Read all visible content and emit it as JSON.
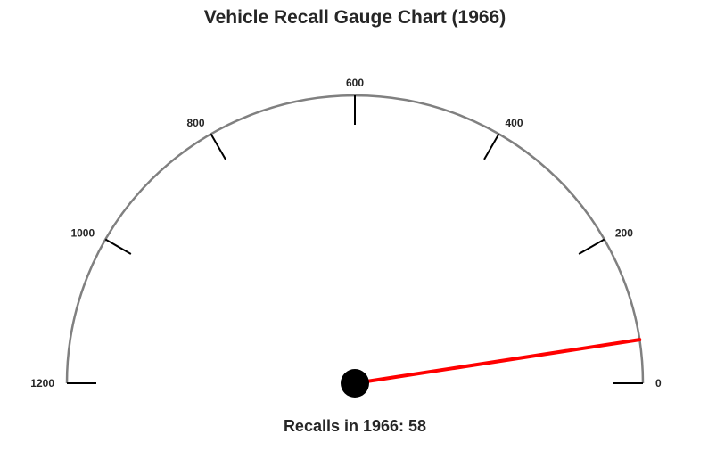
{
  "chart_data": {
    "type": "gauge",
    "title": "Vehicle Recall Gauge Chart (1966)",
    "caption": "Recalls in 1966: 58",
    "value": 58,
    "range": [
      0,
      1200
    ],
    "ticks": [
      0,
      200,
      400,
      600,
      800,
      1000,
      1200
    ],
    "tick_labels": [
      "0",
      "200",
      "400",
      "600",
      "800",
      "1000",
      "1200"
    ],
    "direction": "clockwise from right (0) to left (1200)",
    "colors": {
      "arc": "#808080",
      "tick": "#000000",
      "needle": "#ff0000",
      "hub": "#000000",
      "text": "#262626"
    }
  }
}
